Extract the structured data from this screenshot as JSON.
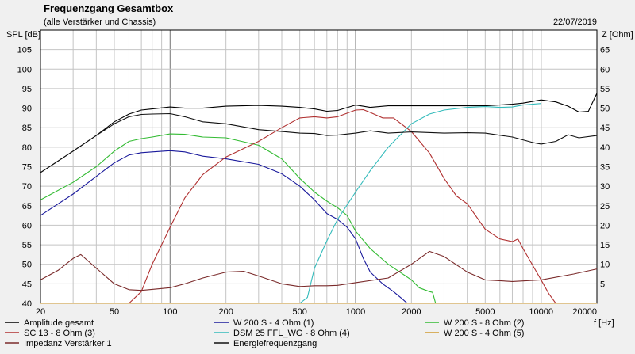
{
  "chart_data": {
    "type": "line",
    "title": "Frequenzgang Gesamtbox",
    "subtitle": "(alle Verstärker und Chassis)",
    "date": "22/07/2019",
    "xlabel": "f [Hz]",
    "ylabel_left": "SPL [dB]",
    "ylabel_right": "Z [Ohm]",
    "x_scale": "log",
    "xlim": [
      20,
      20000
    ],
    "ylim_left": [
      40,
      110
    ],
    "ylim_right": [
      0,
      70
    ],
    "grid": true,
    "legend_position": "bottom",
    "x_ticks": [
      {
        "value": 20,
        "label": "20"
      },
      {
        "value": 50,
        "label": "50"
      },
      {
        "value": 100,
        "label": "100"
      },
      {
        "value": 200,
        "label": "200"
      },
      {
        "value": 500,
        "label": "500"
      },
      {
        "value": 1000,
        "label": "1000"
      },
      {
        "value": 2000,
        "label": "2000"
      },
      {
        "value": 5000,
        "label": "5000"
      },
      {
        "value": 10000,
        "label": "10000"
      },
      {
        "value": 20000,
        "label": "20000"
      }
    ],
    "y_ticks_left": [
      "40",
      "45",
      "50",
      "55",
      "60",
      "65",
      "70",
      "75",
      "80",
      "85",
      "90",
      "95",
      "100",
      "105"
    ],
    "y_ticks_right": [
      "5",
      "10",
      "15",
      "20",
      "25",
      "30",
      "35",
      "40",
      "45",
      "50",
      "55",
      "60",
      "65"
    ],
    "series": [
      {
        "name": "Amplitude gesamt",
        "color": "#000000",
        "axis": "left",
        "x": [
          20,
          30,
          40,
          50,
          60,
          70,
          80,
          100,
          120,
          150,
          200,
          300,
          400,
          500,
          600,
          700,
          800,
          1000,
          1200,
          1500,
          2000,
          3000,
          5000,
          7000,
          8000,
          10000,
          12000,
          14000,
          16000,
          18000,
          20000
        ],
        "y": [
          73.5,
          79,
          83,
          86.5,
          88.5,
          89.5,
          89.8,
          90.3,
          90,
          90,
          90.5,
          90.7,
          90.5,
          90.2,
          89.8,
          89.2,
          89.4,
          90.8,
          90.2,
          90.6,
          90.6,
          90.6,
          90.6,
          91,
          91.3,
          92.1,
          91.6,
          90.5,
          89,
          89.2,
          93.8
        ]
      },
      {
        "name": "W 200 S - 4 Ohm (1)",
        "color": "#1a1a9c",
        "axis": "left",
        "x": [
          20,
          30,
          40,
          50,
          60,
          70,
          80,
          100,
          120,
          150,
          200,
          300,
          400,
          500,
          600,
          700,
          800,
          900,
          1000,
          1100,
          1200,
          1400,
          1600,
          1800,
          1900,
          2000
        ],
        "y": [
          62.5,
          68,
          72.5,
          76,
          78,
          78.6,
          78.8,
          79.1,
          78.8,
          77.7,
          77,
          75.6,
          73.2,
          70,
          66.5,
          63,
          61.5,
          59.5,
          56.5,
          51.5,
          48,
          45,
          43,
          41,
          40,
          40
        ]
      },
      {
        "name": "W 200 S - 8 Ohm (2)",
        "color": "#33bb33",
        "axis": "left",
        "x": [
          20,
          30,
          40,
          50,
          60,
          70,
          80,
          100,
          120,
          150,
          200,
          300,
          400,
          500,
          600,
          700,
          800,
          900,
          1000,
          1200,
          1500,
          2000,
          2200,
          2500,
          2600,
          2700
        ],
        "y": [
          66.5,
          71,
          75,
          79,
          81.5,
          82.2,
          82.6,
          83.4,
          83.3,
          82.6,
          82.4,
          80.5,
          77,
          72,
          68.5,
          66.2,
          64.5,
          62.5,
          58.5,
          54,
          50,
          46,
          44,
          43,
          42.8,
          40
        ]
      },
      {
        "name": "SC 13 - 8 Ohm (3)",
        "color": "#b03030",
        "axis": "left",
        "x": [
          20,
          60,
          70,
          80,
          100,
          120,
          150,
          200,
          300,
          400,
          500,
          600,
          700,
          800,
          1000,
          1100,
          1200,
          1400,
          1600,
          2000,
          2500,
          3000,
          3500,
          4000,
          5000,
          6000,
          7000,
          7500,
          8000,
          10000,
          11000,
          12000,
          13000
        ],
        "y": [
          40,
          40,
          43,
          50,
          59.5,
          67,
          73,
          77.5,
          81.5,
          85,
          87.5,
          87.8,
          87.5,
          87.8,
          89.5,
          89.6,
          88.9,
          87.5,
          87.5,
          84,
          78.5,
          72,
          67.5,
          65.5,
          59,
          56.5,
          55.8,
          56.5,
          54,
          46,
          42.5,
          40,
          40
        ]
      },
      {
        "name": "DSM 25 FFL_WG - 8 Ohm (4)",
        "color": "#33bbbb",
        "axis": "left",
        "x": [
          20,
          500,
          550,
          600,
          700,
          800,
          1000,
          1200,
          1500,
          2000,
          2500,
          3000,
          4000,
          5000,
          6000,
          7000,
          8000,
          10000
        ],
        "y": [
          40,
          40,
          41.5,
          49,
          56,
          61.5,
          68.5,
          74,
          80,
          86,
          88.5,
          89.5,
          90.2,
          90.4,
          90.2,
          90.3,
          90.8,
          91.2
        ]
      },
      {
        "name": "W 200 S - 4 Ohm (5)",
        "color": "#d09a30",
        "axis": "left",
        "x": [
          20,
          20000
        ],
        "y": [
          40,
          40
        ]
      },
      {
        "name": "Impedanz Verstärker 1",
        "color": "#7a2a2a",
        "axis": "right",
        "x": [
          20,
          25,
          30,
          33,
          40,
          50,
          60,
          70,
          100,
          120,
          150,
          200,
          250,
          300,
          400,
          500,
          600,
          700,
          800,
          1000,
          1500,
          2000,
          2500,
          3000,
          4000,
          5000,
          7000,
          10000,
          15000,
          20000
        ],
        "y": [
          6,
          8.5,
          11.5,
          12.5,
          9,
          5,
          3.5,
          3.3,
          4,
          5,
          6.5,
          8,
          8.2,
          7,
          5,
          4.3,
          4.5,
          4.5,
          4.6,
          5.3,
          6.5,
          10,
          13.3,
          12,
          8,
          6,
          5.6,
          6,
          7.5,
          8.8
        ]
      },
      {
        "name": "Energiefrequenzgang",
        "color": "#111111",
        "axis": "left",
        "x": [
          20,
          30,
          40,
          50,
          60,
          70,
          80,
          100,
          120,
          150,
          200,
          300,
          400,
          500,
          600,
          700,
          800,
          1000,
          1200,
          1500,
          2000,
          3000,
          4000,
          5000,
          7000,
          9000,
          10000,
          12000,
          14000,
          16000,
          20000
        ],
        "y": [
          73.5,
          79,
          83,
          86,
          87.8,
          88.4,
          88.5,
          88.6,
          87.8,
          86.5,
          86,
          84.5,
          84,
          83.6,
          83.5,
          83,
          83.1,
          83.6,
          84.2,
          83.6,
          83.9,
          83.6,
          83.7,
          83.6,
          82.6,
          81.2,
          80.8,
          81.5,
          83.2,
          82.4,
          83
        ]
      }
    ]
  }
}
